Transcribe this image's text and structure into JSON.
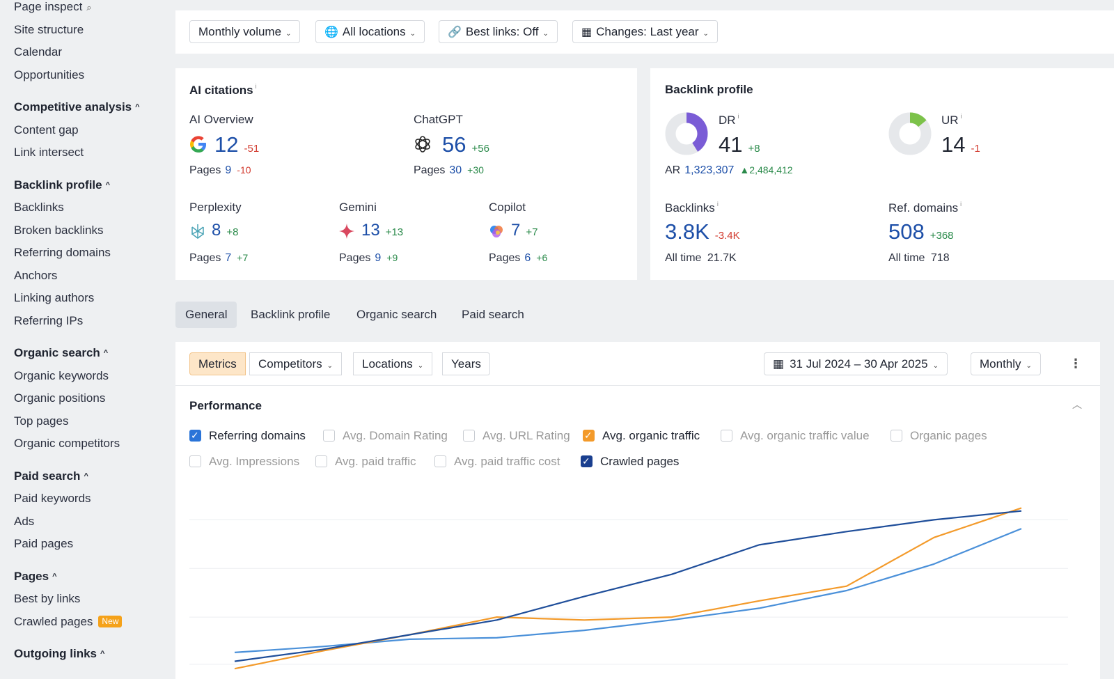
{
  "sidebar": {
    "top_items": [
      "Page inspect",
      "Site structure",
      "Calendar",
      "Opportunities"
    ],
    "sections": [
      {
        "title": "Competitive analysis",
        "items": [
          "Content gap",
          "Link intersect"
        ]
      },
      {
        "title": "Backlink profile",
        "items": [
          "Backlinks",
          "Broken backlinks",
          "Referring domains",
          "Anchors",
          "Linking authors",
          "Referring IPs"
        ]
      },
      {
        "title": "Organic search",
        "items": [
          "Organic keywords",
          "Organic positions",
          "Top pages",
          "Organic competitors"
        ]
      },
      {
        "title": "Paid search",
        "items": [
          "Paid keywords",
          "Ads",
          "Paid pages"
        ]
      },
      {
        "title": "Pages",
        "items": [
          "Best by links",
          "Crawled pages"
        ]
      },
      {
        "title": "Outgoing links",
        "items": []
      }
    ],
    "new_badge": "New"
  },
  "filters": {
    "volume": "Monthly volume",
    "locations": "All locations",
    "best_links": "Best links: Off",
    "changes": "Changes: Last year"
  },
  "ai_citations": {
    "title": "AI citations",
    "info": "i",
    "pages_label": "Pages",
    "overview": {
      "name": "AI Overview",
      "value": "12",
      "delta": "-51",
      "pages": "9",
      "pages_delta": "-10"
    },
    "chatgpt": {
      "name": "ChatGPT",
      "value": "56",
      "delta": "+56",
      "pages": "30",
      "pages_delta": "+30"
    },
    "perplexity": {
      "name": "Perplexity",
      "value": "8",
      "delta": "+8",
      "pages": "7",
      "pages_delta": "+7"
    },
    "gemini": {
      "name": "Gemini",
      "value": "13",
      "delta": "+13",
      "pages": "9",
      "pages_delta": "+9"
    },
    "copilot": {
      "name": "Copilot",
      "value": "7",
      "delta": "+7",
      "pages": "6",
      "pages_delta": "+6"
    }
  },
  "backlink_profile": {
    "title": "Backlink profile",
    "dr": {
      "label": "DR",
      "value": "41",
      "delta": "+8",
      "gauge": 0.41
    },
    "ur": {
      "label": "UR",
      "value": "14",
      "delta": "-1",
      "gauge": 0.14
    },
    "ar": {
      "label": "AR",
      "value": "1,323,307",
      "delta": "2,484,412"
    },
    "backlinks": {
      "label": "Backlinks",
      "value": "3.8K",
      "delta": "-3.4K",
      "all_time_label": "All time",
      "all_time": "21.7K"
    },
    "ref_domains": {
      "label": "Ref. domains",
      "value": "508",
      "delta": "+368",
      "all_time_label": "All time",
      "all_time": "718"
    }
  },
  "tabs": [
    "General",
    "Backlink profile",
    "Organic search",
    "Paid search"
  ],
  "panel": {
    "segments": [
      "Metrics",
      "Competitors",
      "Locations",
      "Years"
    ],
    "date_range": "31 Jul 2024 – 30 Apr 2025",
    "interval": "Monthly",
    "section_title": "Performance",
    "checkboxes": [
      {
        "label": "Referring domains",
        "checked": true,
        "color": "#2a74d8"
      },
      {
        "label": "Avg. Domain Rating",
        "checked": false
      },
      {
        "label": "Avg. URL Rating",
        "checked": false
      },
      {
        "label": "Avg. organic traffic",
        "checked": true,
        "color": "#f39a2a"
      },
      {
        "label": "Avg. organic traffic value",
        "checked": false
      },
      {
        "label": "Organic pages",
        "checked": false
      },
      {
        "label": "Avg. Impressions",
        "checked": false
      },
      {
        "label": "Avg. paid traffic",
        "checked": false
      },
      {
        "label": "Avg. paid traffic cost",
        "checked": false
      },
      {
        "label": "Crawled pages",
        "checked": true,
        "color": "#1a3f8f"
      }
    ]
  },
  "chart_data": {
    "type": "line",
    "x": [
      1,
      2,
      3,
      4,
      5,
      6,
      7,
      8,
      9,
      10
    ],
    "series": [
      {
        "name": "Referring domains",
        "color": "#4a90d9",
        "values": [
          8,
          12,
          17,
          18,
          23,
          30,
          38,
          50,
          68,
          92
        ]
      },
      {
        "name": "Avg. organic traffic",
        "color": "#f39a2a",
        "values": [
          -3,
          9,
          20,
          32,
          30,
          32,
          43,
          53,
          86,
          106
        ]
      },
      {
        "name": "Crawled pages",
        "color": "#1f4e9a",
        "values": [
          2,
          10,
          20,
          30,
          46,
          61,
          81,
          90,
          98,
          104
        ]
      }
    ],
    "ylim": [
      -10,
      110
    ],
    "gridlines": [
      0,
      32,
      65,
      98
    ]
  }
}
